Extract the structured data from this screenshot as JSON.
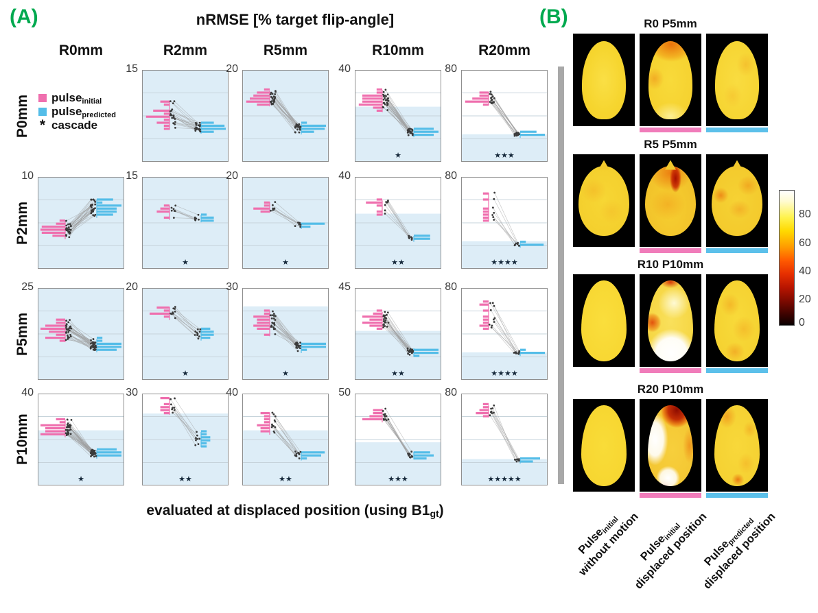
{
  "colors": {
    "pink": "#ef6fae",
    "blue": "#54bde8",
    "shade": "#ddedf7",
    "green": "#00a94f",
    "gray_bar": "#a8a8a8",
    "underline_pink": "#f07cba",
    "underline_blue": "#5cc0ea",
    "star": "#16293b",
    "dot": "#3a3a3a",
    "pair_line": "#9b9b9b"
  },
  "panelA": {
    "label": "(A)",
    "title": "nRMSE [% target flip-angle]",
    "xlabel": {
      "pre": "evaluated at displaced position (using B1",
      "sub": "gt",
      "post": ")"
    },
    "legend": [
      {
        "swatch": "pink",
        "text": "pulse",
        "sub": "initial"
      },
      {
        "swatch": "blue",
        "text": "pulse",
        "sub": "predicted"
      },
      {
        "marker": "*",
        "text": "cascade"
      }
    ]
  },
  "panelB": {
    "label": "(B)"
  },
  "chart_data": [
    {
      "type": "paired-scatter-histogram-grid",
      "title": "nRMSE [% target flip-angle]",
      "xlabel": "evaluated at displaced position (using B1_gt)",
      "columns": [
        "R0mm",
        "R2mm",
        "R5mm",
        "R10mm",
        "R20mm"
      ],
      "rows": [
        "P0mm",
        "P2mm",
        "P5mm",
        "P10mm"
      ],
      "series": [
        "pulse_initial",
        "pulse_predicted"
      ],
      "marker_note": "* cascade",
      "cell_value_format": "pink/blue = [mean, halfRange] in % of target flip-angle; shade = upper edge of no-motion reference band; stars = cascade significance count; ylim = top y-axis label",
      "cells": [
        {
          "r": 0,
          "c": 1,
          "ylim": 15,
          "shade": 24,
          "stars": 0,
          "n": 20,
          "pink": [
            7.8,
            2.2
          ],
          "blue": [
            5.8,
            1.0
          ]
        },
        {
          "r": 0,
          "c": 2,
          "ylim": 20,
          "shade": 24,
          "stars": 0,
          "n": 22,
          "pink": [
            13.5,
            2.4
          ],
          "blue": [
            7.3,
            1.2
          ]
        },
        {
          "r": 0,
          "c": 3,
          "ylim": 40,
          "shade": 24,
          "stars": 1,
          "n": 26,
          "pink": [
            27,
            4.5
          ],
          "blue": [
            13,
            1.6
          ]
        },
        {
          "r": 0,
          "c": 4,
          "ylim": 80,
          "shade": 24,
          "stars": 3,
          "n": 15,
          "pink": [
            55,
            11
          ],
          "blue": [
            24,
            2.5
          ]
        },
        {
          "r": 1,
          "c": 0,
          "ylim": 10,
          "shade": 24,
          "stars": 0,
          "n": 26,
          "pink": [
            4.3,
            1.0
          ],
          "blue": [
            6.6,
            1.1
          ]
        },
        {
          "r": 1,
          "c": 1,
          "ylim": 15,
          "shade": 24,
          "stars": 1,
          "n": 7,
          "pink": [
            9.6,
            1.2
          ],
          "blue": [
            8.0,
            1.2
          ]
        },
        {
          "r": 1,
          "c": 2,
          "ylim": 20,
          "shade": 24,
          "stars": 1,
          "n": 8,
          "pink": [
            13.5,
            1.7
          ],
          "blue": [
            9.5,
            1.4
          ]
        },
        {
          "r": 1,
          "c": 3,
          "ylim": 40,
          "shade": 24,
          "stars": 2,
          "n": 8,
          "pink": [
            27,
            3.5
          ],
          "blue": [
            13.5,
            1.4
          ]
        },
        {
          "r": 1,
          "c": 4,
          "ylim": 80,
          "shade": 24,
          "stars": 4,
          "n": 7,
          "pink": [
            55,
            12
          ],
          "blue": [
            21,
            1.6
          ]
        },
        {
          "r": 2,
          "c": 0,
          "ylim": 25,
          "shade": 25,
          "stars": 0,
          "n": 30,
          "pink": [
            13.5,
            2.4
          ],
          "blue": [
            9.3,
            1.7
          ]
        },
        {
          "r": 2,
          "c": 1,
          "ylim": 20,
          "shade": 24,
          "stars": 1,
          "n": 10,
          "pink": [
            14.5,
            1.7
          ],
          "blue": [
            10.5,
            1.7
          ]
        },
        {
          "r": 2,
          "c": 2,
          "ylim": 30,
          "shade": 24,
          "stars": 1,
          "n": 20,
          "pink": [
            18.5,
            3.2
          ],
          "blue": [
            11,
            1.7
          ]
        },
        {
          "r": 2,
          "c": 3,
          "ylim": 45,
          "shade": 24,
          "stars": 2,
          "n": 20,
          "pink": [
            30,
            5.5
          ],
          "blue": [
            14,
            1.8
          ]
        },
        {
          "r": 2,
          "c": 4,
          "ylim": 80,
          "shade": 24,
          "stars": 4,
          "n": 10,
          "pink": [
            57,
            12
          ],
          "blue": [
            24,
            2.0
          ]
        },
        {
          "r": 3,
          "c": 0,
          "ylim": 40,
          "shade": 24,
          "stars": 1,
          "n": 30,
          "pink": [
            25,
            4
          ],
          "blue": [
            14,
            2.2
          ]
        },
        {
          "r": 3,
          "c": 1,
          "ylim": 30,
          "shade": 23.5,
          "stars": 2,
          "n": 8,
          "pink": [
            26,
            2.5
          ],
          "blue": [
            15,
            2.2
          ]
        },
        {
          "r": 3,
          "c": 2,
          "ylim": 40,
          "shade": 24,
          "stars": 2,
          "n": 12,
          "pink": [
            27,
            5
          ],
          "blue": [
            14,
            2.2
          ]
        },
        {
          "r": 3,
          "c": 3,
          "ylim": 50,
          "shade": 23.5,
          "stars": 3,
          "n": 12,
          "pink": [
            38,
            4.5
          ],
          "blue": [
            17,
            2.2
          ]
        },
        {
          "r": 3,
          "c": 4,
          "ylim": 80,
          "shade": 23,
          "stars": 5,
          "n": 8,
          "pink": [
            62,
            11
          ],
          "blue": [
            22,
            2.0
          ]
        }
      ]
    },
    {
      "type": "heatmap",
      "colormap": "hot",
      "colorbar": {
        "ticks": [
          80,
          60,
          40,
          20,
          0
        ]
      },
      "groups": [
        {
          "title": "R0 P5mm",
          "shape": "egg-a",
          "tiles": [
            {
              "variant": "plain-a"
            },
            {
              "variant": "g1-mid",
              "underline": "pink"
            },
            {
              "variant": "g1-right",
              "underline": "blue"
            }
          ]
        },
        {
          "title": "R5 P5mm",
          "shape": "round-b",
          "tiles": [
            {
              "variant": "g2-left"
            },
            {
              "variant": "g2-mid",
              "underline": "pink"
            },
            {
              "variant": "g2-right",
              "underline": "blue"
            }
          ]
        },
        {
          "title": "R10 P10mm",
          "shape": "egg-c",
          "tiles": [
            {
              "variant": "plain-b"
            },
            {
              "variant": "g3-mid",
              "underline": "pink"
            },
            {
              "variant": "g3-right",
              "underline": "blue"
            }
          ]
        },
        {
          "title": "R20 P10mm",
          "shape": "egg-c",
          "tiles": [
            {
              "variant": "plain-c"
            },
            {
              "variant": "g4-mid",
              "underline": "pink"
            },
            {
              "variant": "g4-right",
              "underline": "blue"
            }
          ]
        }
      ],
      "columns": [
        {
          "pulse": "Pulse",
          "sub": "initial",
          "rest": "without motion"
        },
        {
          "pulse": "Pulse",
          "sub": "initial",
          "rest": "displaced position"
        },
        {
          "pulse": "Pulse",
          "sub": "predicted",
          "rest": "displaced position"
        }
      ]
    }
  ]
}
